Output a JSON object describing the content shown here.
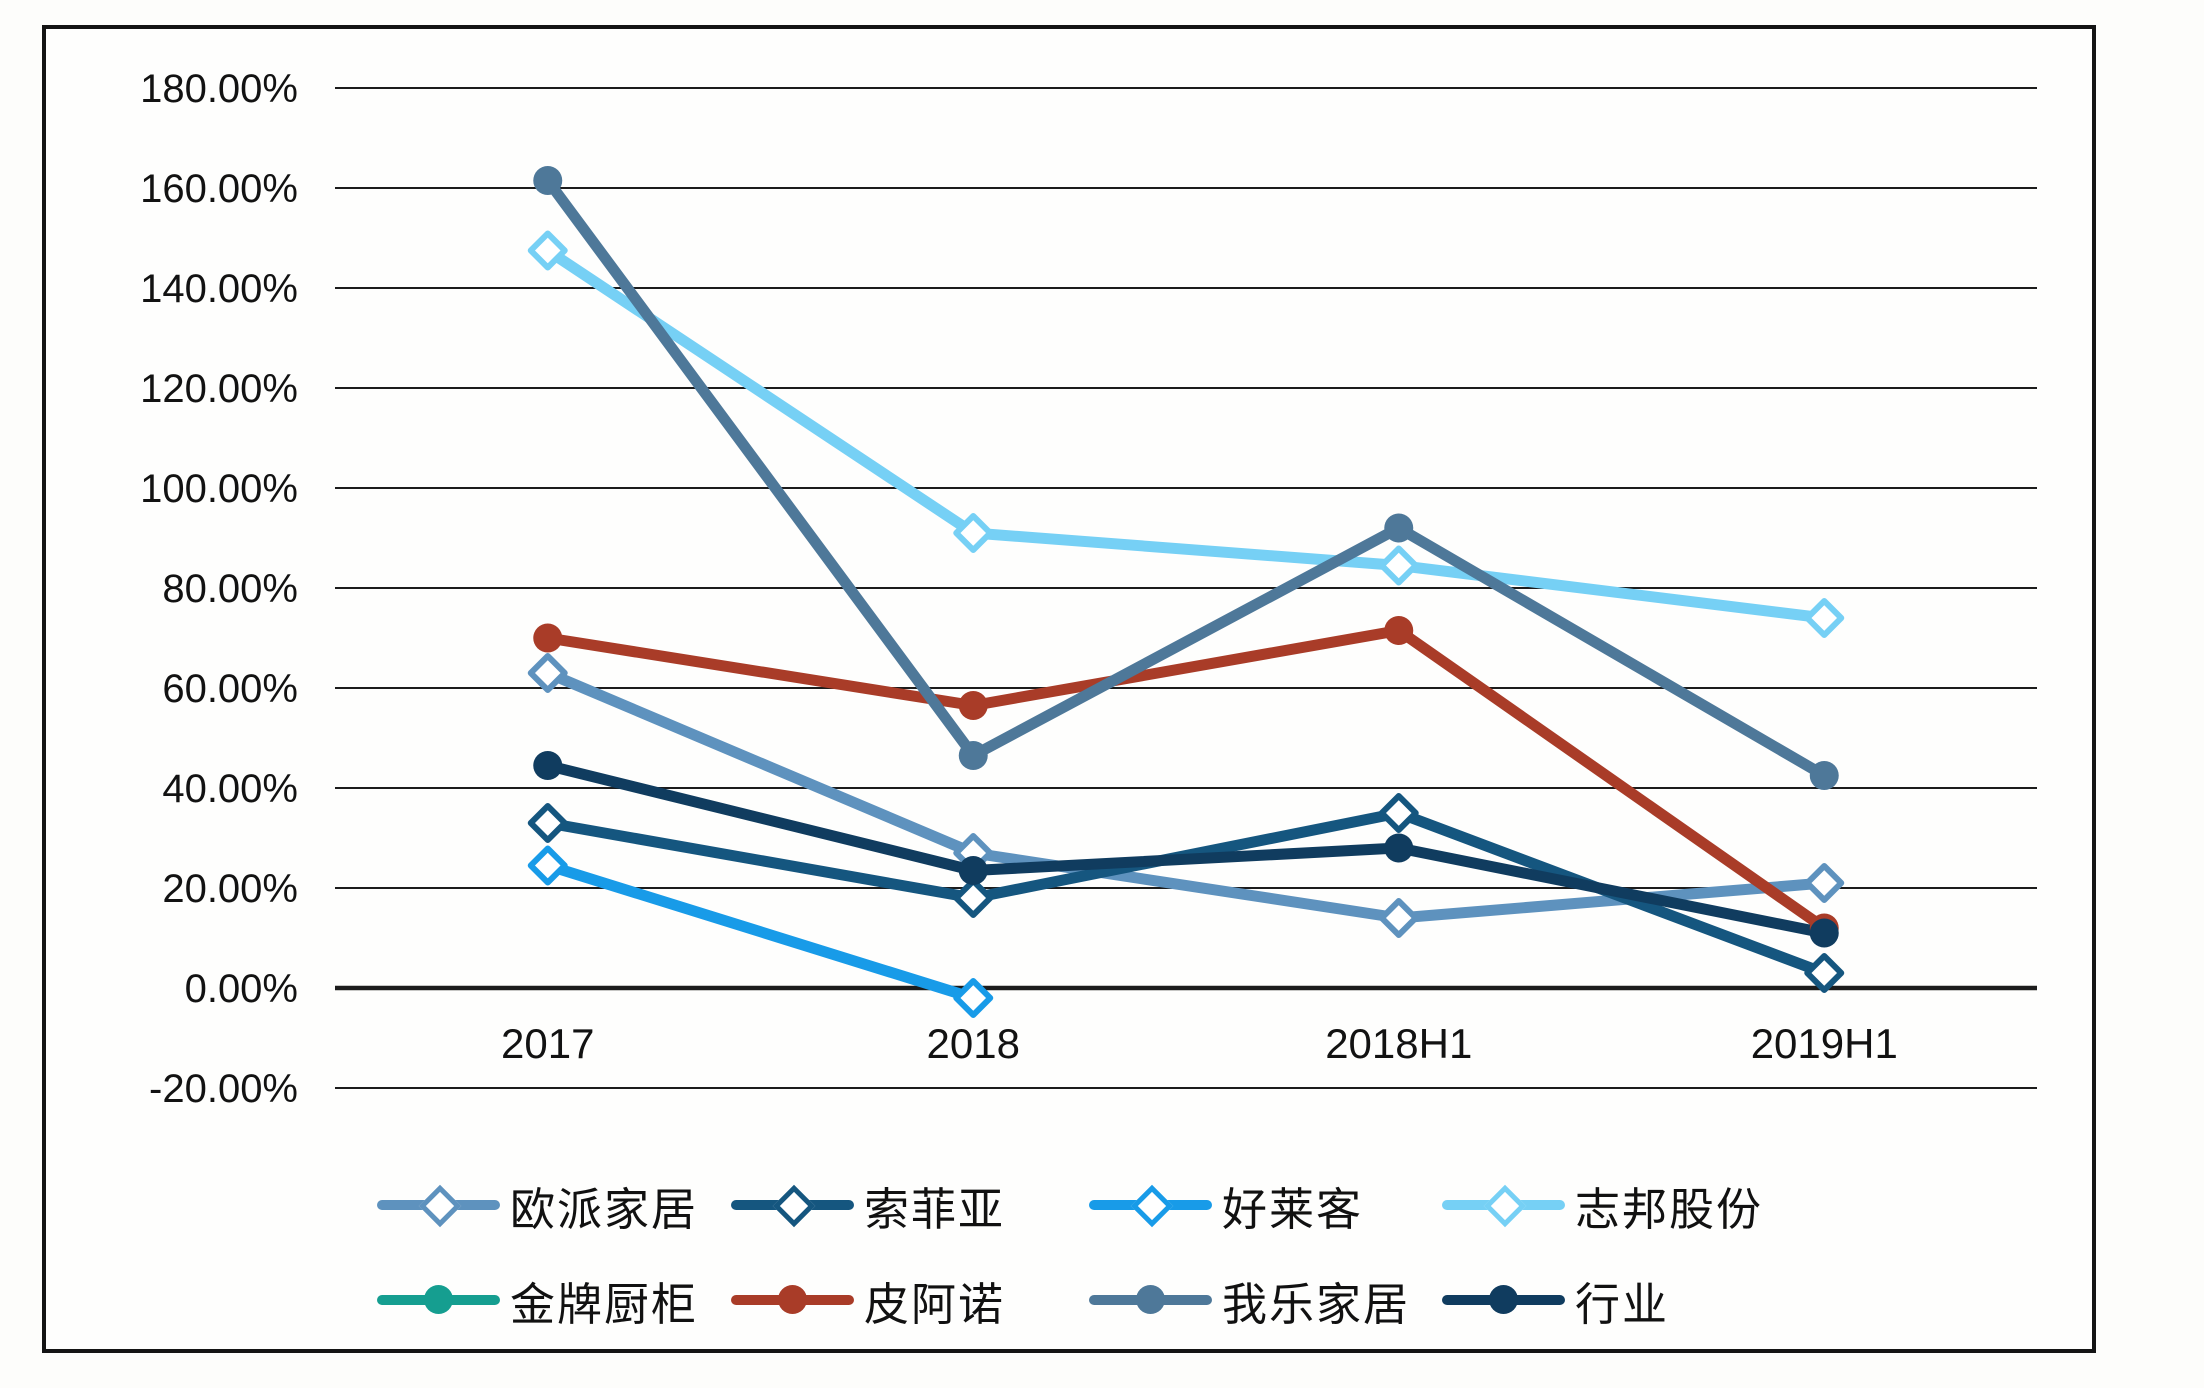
{
  "figure": {
    "background": "#fdfdfb",
    "frame_border_color": "#141414",
    "gridline_color": "#1c1c1c",
    "axis_text_color": "#121212"
  },
  "y_axis": {
    "tick_labels": [
      "180.00%",
      "160.00%",
      "140.00%",
      "120.00%",
      "100.00%",
      "80.00%",
      "60.00%",
      "40.00%",
      "20.00%",
      "0.00%",
      "-20.00%"
    ],
    "max": 180,
    "min": -20,
    "step": 20,
    "unit": "%"
  },
  "x_axis": {
    "categories": [
      "2017",
      "2018",
      "2018H1",
      "2019H1"
    ]
  },
  "legend": {
    "rows": [
      [
        "欧派家居",
        "索菲亚",
        "好莱客",
        "志邦股份"
      ],
      [
        "金牌厨柜",
        "皮阿诺",
        "我乐家居",
        "行业"
      ]
    ],
    "position": "bottom"
  },
  "chart_data": {
    "type": "line",
    "title": "",
    "xlabel": "",
    "ylabel": "",
    "ylim": [
      -20,
      180
    ],
    "grid": true,
    "legend_position": "bottom",
    "categories": [
      "2017",
      "2018",
      "2018H1",
      "2019H1"
    ],
    "series": [
      {
        "name": "欧派家居",
        "color": "#5E92BE",
        "marker": "diamond",
        "values": [
          63,
          27,
          14,
          21
        ]
      },
      {
        "name": "索菲亚",
        "color": "#15567F",
        "marker": "diamond",
        "values": [
          33,
          18,
          35,
          3
        ]
      },
      {
        "name": "好莱客",
        "color": "#189BE8",
        "marker": "diamond",
        "values": [
          24.5,
          -2,
          null,
          null
        ]
      },
      {
        "name": "志邦股份",
        "color": "#76D0F5",
        "marker": "diamond",
        "values": [
          147.5,
          91,
          84.5,
          74
        ]
      },
      {
        "name": "金牌厨柜",
        "color": "#159E90",
        "marker": "circle",
        "values": [
          null,
          null,
          null,
          null
        ]
      },
      {
        "name": "皮阿诺",
        "color": "#A93C28",
        "marker": "circle",
        "values": [
          70,
          56.5,
          71.5,
          12
        ]
      },
      {
        "name": "我乐家居",
        "color": "#4E7899",
        "marker": "circle",
        "values": [
          161.5,
          46.5,
          92,
          42.5
        ]
      },
      {
        "name": "行业",
        "color": "#103C5F",
        "marker": "circle",
        "values": [
          44.5,
          23.5,
          28,
          11
        ]
      }
    ]
  }
}
